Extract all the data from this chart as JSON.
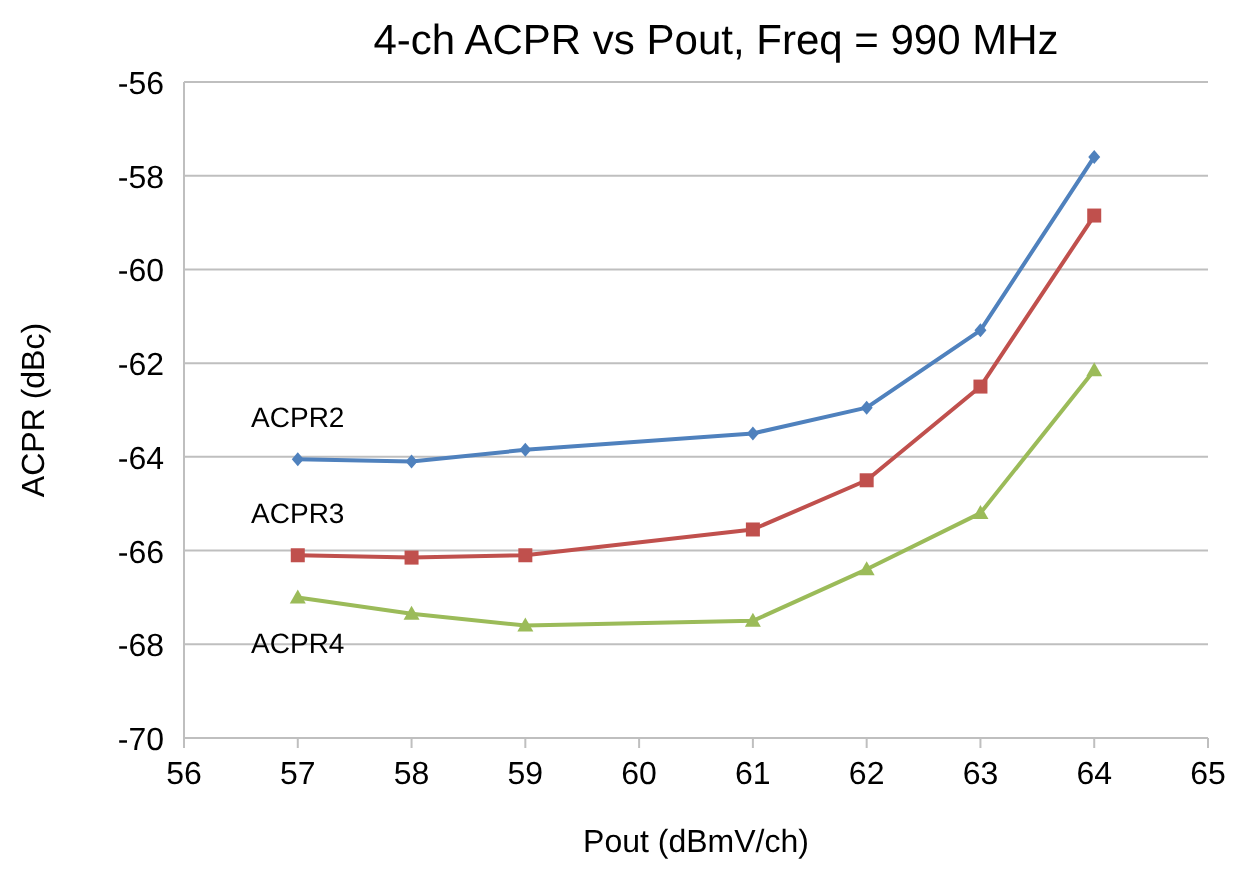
{
  "chart_data": {
    "type": "line",
    "title": "4-ch ACPR vs Pout, Freq = 990 MHz",
    "xlabel": "Pout (dBmV/ch)",
    "ylabel": "ACPR (dBc)",
    "x": [
      57,
      58,
      59,
      61,
      62,
      63,
      64
    ],
    "xlim": [
      56,
      65
    ],
    "xticks": [
      56,
      57,
      58,
      59,
      60,
      61,
      62,
      63,
      64,
      65
    ],
    "ylim": [
      -70,
      -56
    ],
    "yticks": [
      -70,
      -68,
      -66,
      -64,
      -62,
      -60,
      -58,
      -56
    ],
    "grid": "y",
    "series": [
      {
        "name": "ACPR2",
        "color": "#4f81bd",
        "marker": "diamond",
        "values": [
          -64.05,
          -64.1,
          -63.85,
          -63.5,
          -62.95,
          -61.3,
          -57.6
        ]
      },
      {
        "name": "ACPR3",
        "color": "#c0504d",
        "marker": "square",
        "values": [
          -66.1,
          -66.15,
          -66.1,
          -65.55,
          -64.5,
          -62.5,
          -58.85
        ]
      },
      {
        "name": "ACPR4",
        "color": "#9bbb59",
        "marker": "triangle",
        "values": [
          -67.0,
          -67.35,
          -67.6,
          -67.5,
          -66.4,
          -65.2,
          -62.15
        ]
      }
    ]
  }
}
